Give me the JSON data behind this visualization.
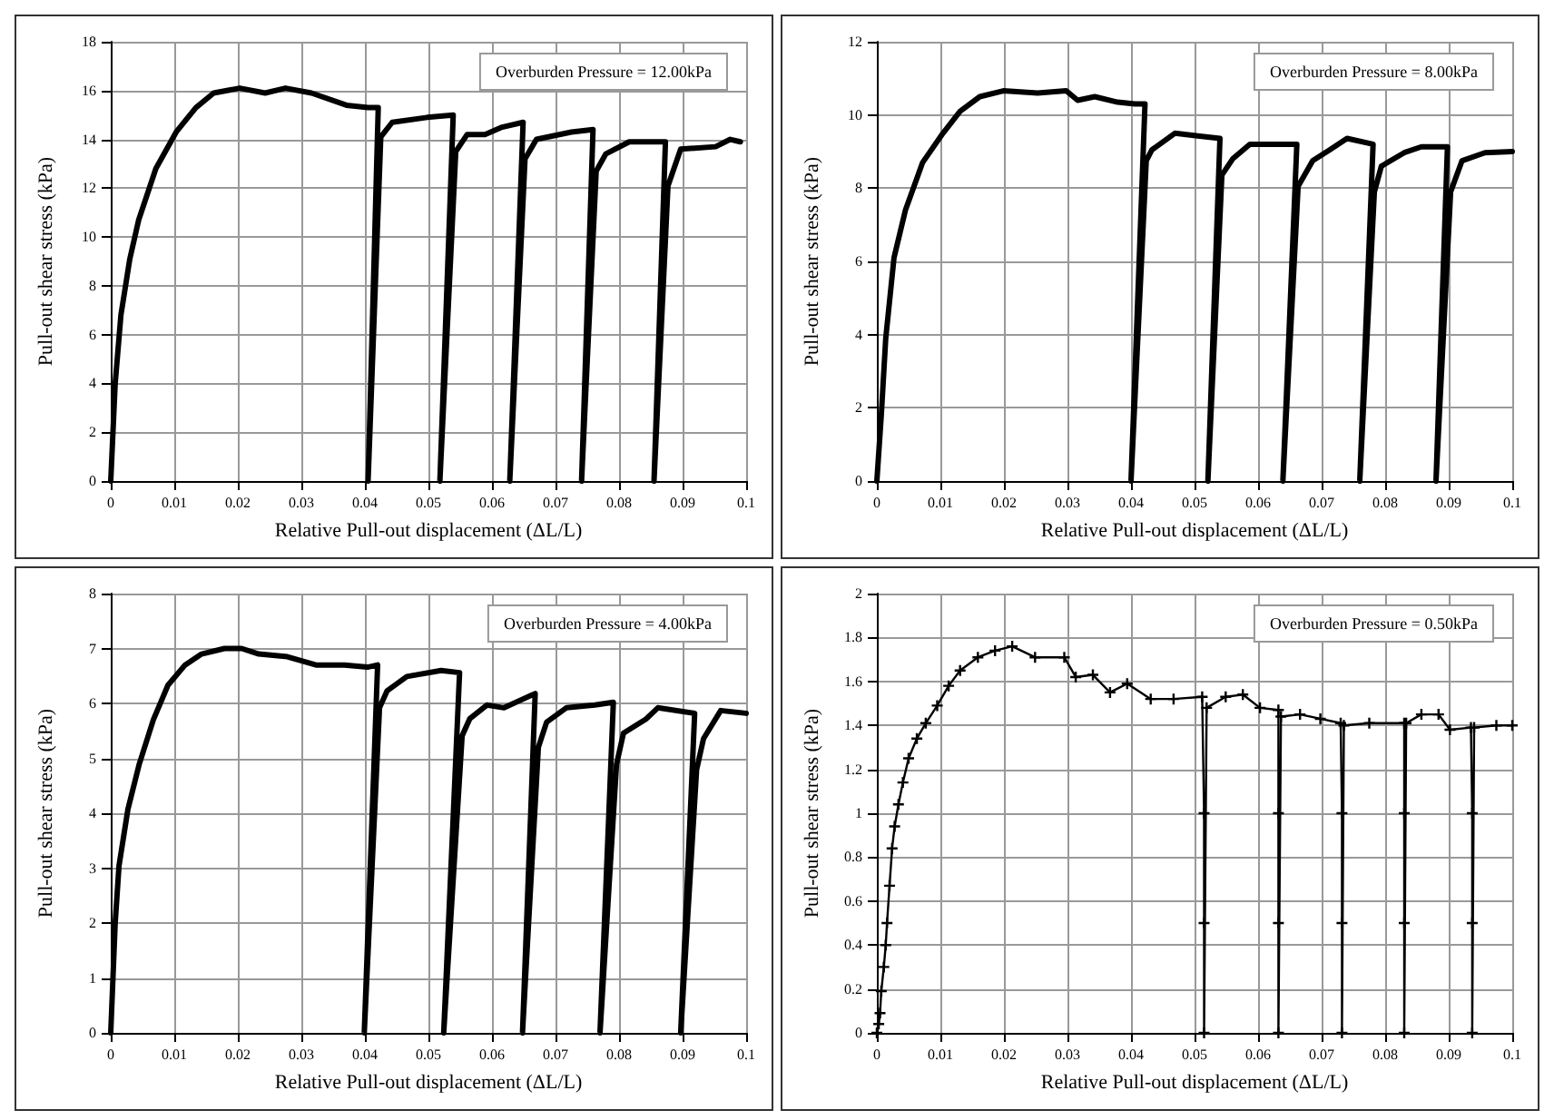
{
  "chart_data": [
    {
      "type": "line",
      "xlabel": "Relative Pull-out displacement (ΔL/L)",
      "ylabel": "Pull-out shear stress (kPa)",
      "annotations": [
        "Overburden Pressure = 12.00kPa"
      ],
      "color": "#000000",
      "marker": "none",
      "grid": true,
      "xlim": [
        0,
        0.1
      ],
      "xticks": [
        0,
        0.01,
        0.02,
        0.03,
        0.04,
        0.05,
        0.06,
        0.07,
        0.08,
        0.09,
        0.1
      ],
      "ylim": [
        0,
        18
      ],
      "yticks": [
        0,
        2,
        4,
        6,
        8,
        10,
        12,
        14,
        16,
        18
      ],
      "x": [
        0,
        0.0007,
        0.0016,
        0.003,
        0.0044,
        0.0071,
        0.0103,
        0.0134,
        0.0162,
        0.0203,
        0.0243,
        0.0275,
        0.0316,
        0.0371,
        0.0405,
        0.0421,
        0.0405,
        0.0425,
        0.0443,
        0.0498,
        0.0539,
        0.0518,
        0.0543,
        0.0561,
        0.0589,
        0.0616,
        0.0649,
        0.0628,
        0.0652,
        0.067,
        0.0725,
        0.0759,
        0.0741,
        0.0764,
        0.0779,
        0.0816,
        0.0873,
        0.0855,
        0.0877,
        0.0897,
        0.0952,
        0.0975,
        0.0991
      ],
      "values": [
        0,
        4,
        6.8,
        9.1,
        10.7,
        12.8,
        14.3,
        15.3,
        15.9,
        16.1,
        15.9,
        16.1,
        15.9,
        15.4,
        15.3,
        15.3,
        0,
        14.1,
        14.7,
        14.9,
        15,
        0,
        13.5,
        14.2,
        14.2,
        14.5,
        14.7,
        0,
        13.2,
        14,
        14.3,
        14.4,
        0,
        12.7,
        13.4,
        13.9,
        13.9,
        0,
        12.1,
        13.6,
        13.7,
        14,
        13.9
      ]
    },
    {
      "type": "line",
      "xlabel": "Relative Pull-out displacement (ΔL/L)",
      "ylabel": "Pull-out shear stress (kPa)",
      "annotations": [
        "Overburden Pressure = 8.00kPa"
      ],
      "color": "#000000",
      "marker": "none",
      "grid": true,
      "xlim": [
        0,
        0.1
      ],
      "xticks": [
        0,
        0.01,
        0.02,
        0.03,
        0.04,
        0.05,
        0.06,
        0.07,
        0.08,
        0.09,
        0.1
      ],
      "ylim": [
        0,
        12
      ],
      "yticks": [
        0,
        2,
        4,
        6,
        8,
        10,
        12
      ],
      "x": [
        0,
        0.0007,
        0.0014,
        0.0027,
        0.0045,
        0.0072,
        0.0104,
        0.0131,
        0.0162,
        0.0199,
        0.0253,
        0.0298,
        0.0316,
        0.0343,
        0.0379,
        0.0406,
        0.0422,
        0.04,
        0.0424,
        0.0433,
        0.0469,
        0.0505,
        0.054,
        0.0521,
        0.0543,
        0.056,
        0.0587,
        0.0632,
        0.0661,
        0.0639,
        0.0663,
        0.0686,
        0.0713,
        0.074,
        0.0781,
        0.076,
        0.0783,
        0.0794,
        0.083,
        0.0857,
        0.0898,
        0.088,
        0.0903,
        0.0921,
        0.0957,
        0.1
      ],
      "values": [
        0,
        1.8,
        3.9,
        6.1,
        7.4,
        8.7,
        9.5,
        10.1,
        10.5,
        10.66,
        10.6,
        10.66,
        10.4,
        10.5,
        10.35,
        10.3,
        10.3,
        0,
        8.75,
        9.05,
        9.5,
        9.43,
        9.36,
        0,
        8.36,
        8.8,
        9.2,
        9.2,
        9.2,
        0,
        8.05,
        8.75,
        9.05,
        9.36,
        9.2,
        0,
        7.9,
        8.6,
        8.97,
        9.13,
        9.13,
        0,
        7.9,
        8.75,
        8.97,
        9
      ]
    },
    {
      "type": "line",
      "xlabel": "Relative Pull-out displacement (ΔL/L)",
      "ylabel": "Pull-out shear stress (kPa)",
      "annotations": [
        "Overburden Pressure = 4.00kPa"
      ],
      "color": "#000000",
      "marker": "none",
      "grid": true,
      "xlim": [
        0,
        0.1
      ],
      "xticks": [
        0,
        0.01,
        0.02,
        0.03,
        0.04,
        0.05,
        0.06,
        0.07,
        0.08,
        0.09,
        0.1
      ],
      "ylim": [
        0,
        8
      ],
      "yticks": [
        0,
        1,
        2,
        3,
        4,
        5,
        6,
        7,
        8
      ],
      "x": [
        0,
        0.0007,
        0.0013,
        0.0027,
        0.0045,
        0.0067,
        0.009,
        0.0117,
        0.0143,
        0.0179,
        0.0206,
        0.0233,
        0.0278,
        0.0323,
        0.0368,
        0.0404,
        0.042,
        0.0399,
        0.0423,
        0.0435,
        0.0466,
        0.052,
        0.0549,
        0.0524,
        0.0553,
        0.0565,
        0.0592,
        0.0619,
        0.0668,
        0.0648,
        0.0673,
        0.0686,
        0.0717,
        0.0762,
        0.0791,
        0.077,
        0.0796,
        0.0807,
        0.0843,
        0.0861,
        0.0919,
        0.0897,
        0.0922,
        0.0933,
        0.096,
        0.1
      ],
      "values": [
        0,
        2,
        3.04,
        4.07,
        4.9,
        5.7,
        6.33,
        6.7,
        6.9,
        7,
        7,
        6.9,
        6.85,
        6.7,
        6.7,
        6.66,
        6.7,
        0,
        5.92,
        6.23,
        6.49,
        6.6,
        6.56,
        0,
        5.41,
        5.72,
        5.97,
        5.92,
        6.18,
        0,
        5.2,
        5.66,
        5.92,
        5.97,
        6.02,
        0,
        4.89,
        5.46,
        5.72,
        5.92,
        5.82,
        0,
        4.79,
        5.36,
        5.87,
        5.82
      ]
    },
    {
      "type": "line",
      "xlabel": "Relative Pull-out displacement (ΔL/L)",
      "ylabel": "Pull-out shear stress (kPa)",
      "annotations": [
        "Overburden Pressure = 0.50kPa"
      ],
      "color": "#000000",
      "marker": "cross",
      "grid": true,
      "xlim": [
        0,
        0.1
      ],
      "xticks": [
        0,
        0.01,
        0.02,
        0.03,
        0.04,
        0.05,
        0.06,
        0.07,
        0.08,
        0.09,
        0.1
      ],
      "ylim": [
        0,
        2
      ],
      "yticks": [
        0,
        0.2,
        0.4,
        0.6,
        0.8,
        1,
        1.2,
        1.4,
        1.6,
        1.8,
        2
      ],
      "x": [
        0,
        0.0003,
        0.0005,
        0.0007,
        0.0011,
        0.0014,
        0.0016,
        0.002,
        0.0024,
        0.0028,
        0.0034,
        0.0041,
        0.005,
        0.0063,
        0.0077,
        0.0095,
        0.0113,
        0.0131,
        0.0159,
        0.0186,
        0.0213,
        0.0249,
        0.0295,
        0.0313,
        0.034,
        0.0367,
        0.0394,
        0.0431,
        0.0467,
        0.0512,
        0.0515,
        0.0515,
        0.0515,
        0.0519,
        0.0549,
        0.0576,
        0.0603,
        0.0632,
        0.0632,
        0.0632,
        0.0632,
        0.0636,
        0.0666,
        0.0698,
        0.073,
        0.0732,
        0.0732,
        0.0732,
        0.0735,
        0.0775,
        0.083,
        0.083,
        0.083,
        0.083,
        0.0833,
        0.0857,
        0.0884,
        0.0902,
        0.0935,
        0.0937,
        0.0937,
        0.0937,
        0.094,
        0.0975,
        0.1
      ],
      "values": [
        0,
        0.04,
        0.09,
        0.19,
        0.3,
        0.4,
        0.5,
        0.67,
        0.84,
        0.94,
        1.04,
        1.14,
        1.25,
        1.34,
        1.41,
        1.49,
        1.58,
        1.65,
        1.71,
        1.74,
        1.76,
        1.71,
        1.71,
        1.62,
        1.63,
        1.55,
        1.59,
        1.52,
        1.52,
        1.53,
        1,
        0.5,
        0,
        1.48,
        1.53,
        1.54,
        1.48,
        1.47,
        1,
        0.5,
        0,
        1.44,
        1.45,
        1.43,
        1.41,
        1,
        0.5,
        0,
        1.4,
        1.41,
        1.41,
        1,
        0.5,
        0,
        1.41,
        1.45,
        1.45,
        1.38,
        1.39,
        1,
        0.5,
        0,
        1.39,
        1.4,
        1.4
      ]
    }
  ]
}
